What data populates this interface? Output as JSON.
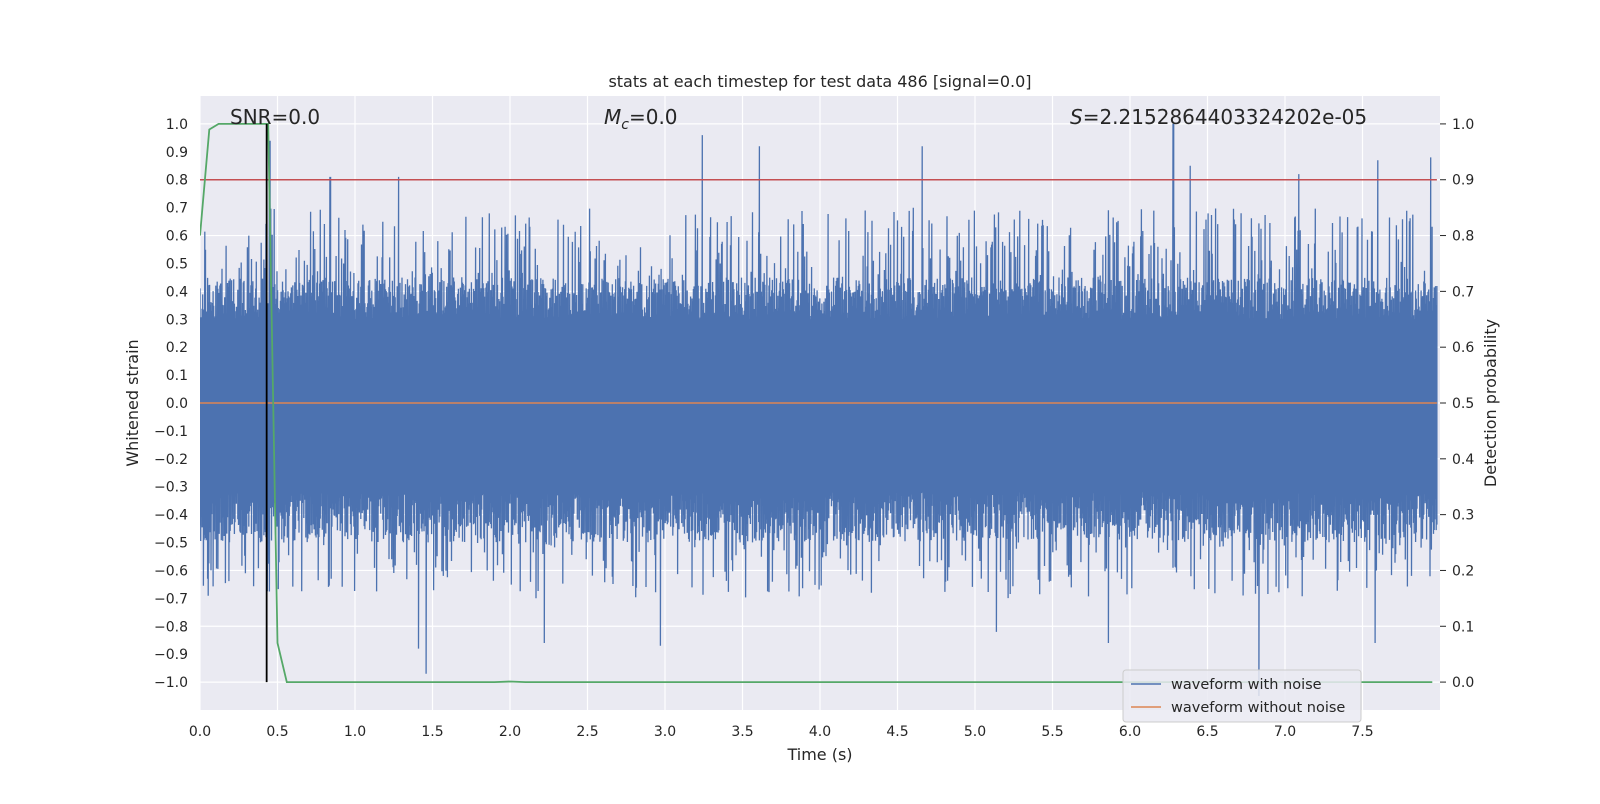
{
  "chart_data": {
    "type": "line",
    "title": "stats at each timestep for test data 486 [signal=0.0]",
    "xlabel": "Time (s)",
    "ylabel": "Whitened strain",
    "ylabel_right": "Detection probability",
    "xlim": [
      0.0,
      8.0
    ],
    "ylim": [
      -1.1,
      1.1
    ],
    "ylim_right": [
      -0.05,
      1.05
    ],
    "x_ticks": [
      "0.0",
      "0.5",
      "1.0",
      "1.5",
      "2.0",
      "2.5",
      "3.0",
      "3.5",
      "4.0",
      "4.5",
      "5.0",
      "5.5",
      "6.0",
      "6.5",
      "7.0",
      "7.5"
    ],
    "y_ticks": [
      "1.0",
      "0.9",
      "0.8",
      "0.7",
      "0.6",
      "0.5",
      "0.4",
      "0.3",
      "0.2",
      "0.1",
      "0.0",
      "-0.1",
      "-0.2",
      "-0.3",
      "-0.4",
      "-0.5",
      "-0.6",
      "-0.7",
      "-0.8",
      "-0.9",
      "-1.0"
    ],
    "y_ticks_right": [
      "1.0",
      "0.9",
      "0.8",
      "0.7",
      "0.6",
      "0.5",
      "0.4",
      "0.3",
      "0.2",
      "0.1",
      "0.0"
    ],
    "grid": true,
    "legend_position": "lower-right",
    "annotations": {
      "snr": "SNR=0.0",
      "mc_symbol": "M",
      "mc_sub": "c",
      "mc_value": "=0.0",
      "s_symbol": "S",
      "s_value": "=2.2152864403324202e-05"
    },
    "series": [
      {
        "name": "waveform with noise",
        "color": "#4c72b0",
        "envelope": "dense noise between about -0.55 and 0.5",
        "peaks": [
          {
            "x": 0.45,
            "y": 0.94
          },
          {
            "x": 0.84,
            "y": 0.81
          },
          {
            "x": 1.28,
            "y": 0.81
          },
          {
            "x": 3.24,
            "y": 0.96
          },
          {
            "x": 3.61,
            "y": 0.92
          },
          {
            "x": 4.66,
            "y": 0.92
          },
          {
            "x": 6.28,
            "y": 1.0
          },
          {
            "x": 7.94,
            "y": 0.88
          },
          {
            "x": 7.6,
            "y": 0.87
          },
          {
            "x": 7.09,
            "y": 0.82
          },
          {
            "x": 6.39,
            "y": 0.85
          }
        ],
        "troughs": [
          {
            "x": 1.46,
            "y": -0.97
          },
          {
            "x": 1.41,
            "y": -0.88
          },
          {
            "x": 2.22,
            "y": -0.86
          },
          {
            "x": 2.97,
            "y": -0.87
          },
          {
            "x": 5.14,
            "y": -0.82
          },
          {
            "x": 5.86,
            "y": -0.86
          },
          {
            "x": 6.83,
            "y": -1.05
          },
          {
            "x": 7.58,
            "y": -0.86
          }
        ]
      },
      {
        "name": "waveform without noise",
        "color": "#dd8452",
        "y_constant": 0.0
      },
      {
        "name": "detection probability",
        "color": "#55a868",
        "axis": "right",
        "x": [
          0.0,
          0.06,
          0.12,
          0.2,
          0.3,
          0.4,
          0.44,
          0.5,
          0.56,
          1.0,
          1.5,
          1.9,
          2.0,
          2.1,
          3.0,
          4.0,
          5.0,
          6.0,
          7.0,
          7.95
        ],
        "y": [
          0.8,
          0.99,
          1.0,
          1.0,
          1.0,
          1.0,
          1.0,
          0.07,
          0.0,
          0.0,
          0.0,
          0.0,
          0.001,
          0.0,
          0.0,
          0.0,
          0.0,
          0.0,
          0.0,
          0.0
        ]
      }
    ],
    "threshold_line": {
      "color": "#c44e52",
      "y_right": 0.9
    },
    "vertical_marker": {
      "color": "#000000",
      "x": 0.43,
      "y_top": 1.0,
      "y_bottom": -1.0
    }
  }
}
